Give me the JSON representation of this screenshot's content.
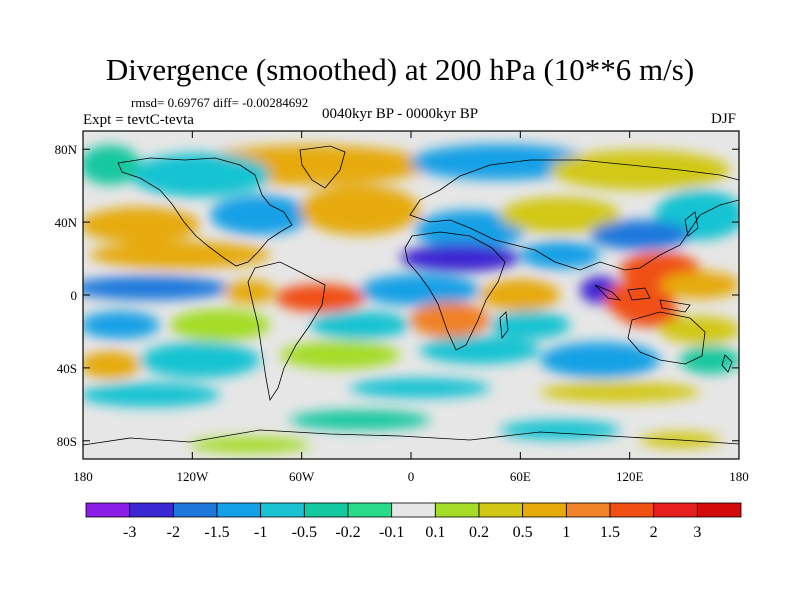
{
  "title": "Divergence (smoothed) at 200 hPa (10**6 m/s)",
  "stats": "rmsd= 0.69767 diff= -0.00284692",
  "experiment": "Expt = tevtC-tevta",
  "period": "0040kyr BP - 0000kyr BP",
  "season": "DJF",
  "map": {
    "lat_ticks": [
      "80N",
      "40N",
      "0",
      "40S",
      "80S"
    ],
    "lat_values": [
      80,
      40,
      0,
      -40,
      -80
    ],
    "lon_ticks": [
      "180",
      "120W",
      "60W",
      "0",
      "60E",
      "120E",
      "180"
    ],
    "lon_values": [
      -180,
      -120,
      -60,
      0,
      60,
      120,
      180
    ],
    "lon_range": [
      -180,
      180
    ],
    "lat_range": [
      -90,
      90
    ]
  },
  "colorbar": {
    "labels": [
      "-3",
      "-2",
      "-1.5",
      "-1",
      "-0.5",
      "-0.2",
      "-0.1",
      "0.1",
      "0.2",
      "0.5",
      "1",
      "1.5",
      "2",
      "3"
    ],
    "colors": [
      "#8a1ee6",
      "#3c28d2",
      "#1e78dc",
      "#14a0e6",
      "#19c3d2",
      "#14c8a0",
      "#28dc8c",
      "#e6e6e6",
      "#a5dc28",
      "#d2c814",
      "#e6aa0a",
      "#f08228",
      "#f05014",
      "#e61e1e",
      "#d20a0a"
    ]
  }
}
